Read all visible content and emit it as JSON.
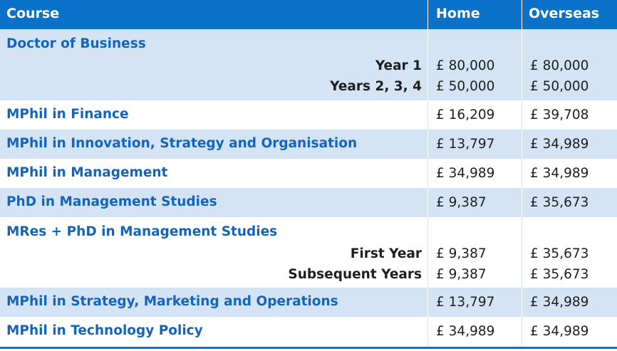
{
  "header": {
    "course": "Course",
    "home": "Home",
    "overseas": "Overseas"
  },
  "rows": [
    {
      "course": "Doctor of Business",
      "subs": [
        {
          "label": "Year 1",
          "home": "£ 80,000",
          "overseas": "£ 80,000"
        },
        {
          "label": "Years 2, 3, 4",
          "home": "£ 50,000",
          "overseas": "£ 50,000"
        }
      ]
    },
    {
      "course": "MPhil in Finance",
      "home": "£ 16,209",
      "overseas": "£ 39,708"
    },
    {
      "course": "MPhil in Innovation, Strategy and Organisation",
      "home": "£ 13,797",
      "overseas": "£ 34,989"
    },
    {
      "course": "MPhil in Management",
      "home": "£ 34,989",
      "overseas": "£ 34,989"
    },
    {
      "course": "PhD in Management Studies",
      "home": "£ 9,387",
      "overseas": "£ 35,673"
    },
    {
      "course": "MRes + PhD in Management Studies",
      "subs": [
        {
          "label": "First Year",
          "home": "£ 9,387",
          "overseas": "£ 35,673"
        },
        {
          "label": "Subsequent Years",
          "home": "£ 9,387",
          "overseas": "£ 35,673"
        }
      ]
    },
    {
      "course": "MPhil in Strategy, Marketing and Operations",
      "home": "£ 13,797",
      "overseas": "£ 34,989"
    },
    {
      "course": "MPhil in Technology Policy",
      "home": "£ 34,989",
      "overseas": "£ 34,989"
    }
  ],
  "colors": {
    "header_bg": "#0a72c9",
    "alt_row_bg": "#d4e4f4",
    "course_text": "#1464ba"
  }
}
